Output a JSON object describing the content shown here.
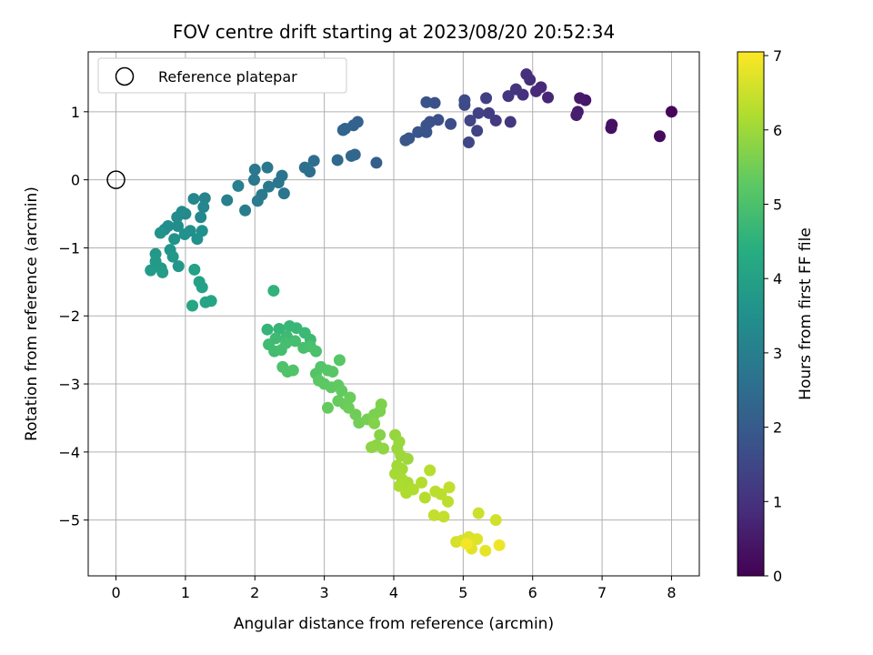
{
  "chart_data": {
    "type": "scatter",
    "title": "FOV centre drift starting at 2023/08/20 20:52:34",
    "xlabel": "Angular distance from reference (arcmin)",
    "ylabel": "Rotation from reference (arcmin)",
    "xlim": [
      -0.4,
      8.4
    ],
    "ylim": [
      -5.82,
      1.88
    ],
    "xticks": [
      0,
      1,
      2,
      3,
      4,
      5,
      6,
      7,
      8
    ],
    "yticks": [
      -5,
      -4,
      -3,
      -2,
      -1,
      0,
      1
    ],
    "grid": true,
    "colorbar": {
      "label": "Hours from first FF file",
      "range": [
        0,
        7.05
      ],
      "ticks": [
        0,
        1,
        2,
        3,
        4,
        5,
        6,
        7
      ],
      "colormap": "viridis"
    },
    "legend": {
      "position": "top-left",
      "entries": [
        {
          "label": "Reference platepar",
          "marker": "open-circle"
        }
      ]
    },
    "reference_point": {
      "x": 0,
      "y": 0
    },
    "series": [
      {
        "points": [
          {
            "x": 8.0,
            "y": 1.0,
            "t": 0.1
          },
          {
            "x": 7.83,
            "y": 0.64,
            "t": 0.2
          },
          {
            "x": 7.13,
            "y": 0.76,
            "t": 0.3
          },
          {
            "x": 7.14,
            "y": 0.81,
            "t": 0.35
          },
          {
            "x": 6.76,
            "y": 1.17,
            "t": 0.45
          },
          {
            "x": 6.68,
            "y": 1.2,
            "t": 0.5
          },
          {
            "x": 6.65,
            "y": 1.0,
            "t": 0.55
          },
          {
            "x": 6.63,
            "y": 0.95,
            "t": 0.6
          },
          {
            "x": 6.22,
            "y": 1.21,
            "t": 0.75
          },
          {
            "x": 6.12,
            "y": 1.36,
            "t": 0.8
          },
          {
            "x": 6.05,
            "y": 1.3,
            "t": 0.85
          },
          {
            "x": 5.96,
            "y": 1.47,
            "t": 0.9
          },
          {
            "x": 5.91,
            "y": 1.55,
            "t": 0.95
          },
          {
            "x": 5.86,
            "y": 1.25,
            "t": 1.0
          },
          {
            "x": 5.76,
            "y": 1.33,
            "t": 1.05
          },
          {
            "x": 5.65,
            "y": 1.23,
            "t": 1.1
          },
          {
            "x": 5.68,
            "y": 0.85,
            "t": 1.15
          },
          {
            "x": 5.47,
            "y": 0.87,
            "t": 1.2
          },
          {
            "x": 5.37,
            "y": 0.98,
            "t": 1.25
          },
          {
            "x": 5.33,
            "y": 1.2,
            "t": 1.3
          },
          {
            "x": 5.22,
            "y": 0.98,
            "t": 1.35
          },
          {
            "x": 5.2,
            "y": 0.72,
            "t": 1.4
          },
          {
            "x": 5.1,
            "y": 0.87,
            "t": 1.45
          },
          {
            "x": 5.08,
            "y": 0.55,
            "t": 1.5
          },
          {
            "x": 5.02,
            "y": 1.1,
            "t": 1.55
          },
          {
            "x": 5.02,
            "y": 1.17,
            "t": 1.6
          },
          {
            "x": 4.82,
            "y": 0.82,
            "t": 1.65
          },
          {
            "x": 4.64,
            "y": 0.88,
            "t": 1.7
          },
          {
            "x": 4.59,
            "y": 1.13,
            "t": 1.72
          },
          {
            "x": 4.52,
            "y": 0.85,
            "t": 1.75
          },
          {
            "x": 4.47,
            "y": 1.14,
            "t": 1.78
          },
          {
            "x": 4.47,
            "y": 0.7,
            "t": 1.8
          },
          {
            "x": 4.47,
            "y": 0.8,
            "t": 1.82
          },
          {
            "x": 4.35,
            "y": 0.7,
            "t": 1.85
          },
          {
            "x": 4.22,
            "y": 0.61,
            "t": 1.88
          },
          {
            "x": 4.17,
            "y": 0.58,
            "t": 1.9
          },
          {
            "x": 3.75,
            "y": 0.25,
            "t": 2.1
          },
          {
            "x": 3.48,
            "y": 0.85,
            "t": 2.2
          },
          {
            "x": 3.42,
            "y": 0.8,
            "t": 2.22
          },
          {
            "x": 3.3,
            "y": 0.75,
            "t": 2.25
          },
          {
            "x": 3.27,
            "y": 0.73,
            "t": 2.28
          },
          {
            "x": 3.44,
            "y": 0.37,
            "t": 2.32
          },
          {
            "x": 3.39,
            "y": 0.35,
            "t": 2.35
          },
          {
            "x": 3.19,
            "y": 0.29,
            "t": 2.4
          },
          {
            "x": 2.85,
            "y": 0.28,
            "t": 2.5
          },
          {
            "x": 2.79,
            "y": 0.12,
            "t": 2.55
          },
          {
            "x": 2.72,
            "y": 0.18,
            "t": 2.6
          },
          {
            "x": 2.39,
            "y": 0.06,
            "t": 2.7
          },
          {
            "x": 2.34,
            "y": -0.04,
            "t": 2.72
          },
          {
            "x": 2.42,
            "y": -0.2,
            "t": 2.75
          },
          {
            "x": 2.18,
            "y": 0.18,
            "t": 2.78
          },
          {
            "x": 2.0,
            "y": 0.15,
            "t": 2.8
          },
          {
            "x": 1.99,
            "y": 0.0,
            "t": 2.82
          },
          {
            "x": 2.2,
            "y": -0.1,
            "t": 2.85
          },
          {
            "x": 2.1,
            "y": -0.22,
            "t": 2.88
          },
          {
            "x": 2.04,
            "y": -0.31,
            "t": 2.9
          },
          {
            "x": 1.86,
            "y": -0.45,
            "t": 2.95
          },
          {
            "x": 1.76,
            "y": -0.09,
            "t": 3.0
          },
          {
            "x": 1.6,
            "y": -0.3,
            "t": 3.05
          },
          {
            "x": 1.28,
            "y": -0.27,
            "t": 3.15
          },
          {
            "x": 1.12,
            "y": -0.28,
            "t": 3.2
          },
          {
            "x": 1.26,
            "y": -0.4,
            "t": 3.22
          },
          {
            "x": 1.22,
            "y": -0.55,
            "t": 3.25
          },
          {
            "x": 1.0,
            "y": -0.5,
            "t": 3.3
          },
          {
            "x": 0.95,
            "y": -0.47,
            "t": 3.32
          },
          {
            "x": 0.88,
            "y": -0.55,
            "t": 3.35
          },
          {
            "x": 0.7,
            "y": -0.73,
            "t": 3.4
          },
          {
            "x": 0.75,
            "y": -0.68,
            "t": 3.42
          },
          {
            "x": 0.89,
            "y": -0.68,
            "t": 3.45
          },
          {
            "x": 1.07,
            "y": -0.75,
            "t": 3.48
          },
          {
            "x": 1.24,
            "y": -0.75,
            "t": 3.5
          },
          {
            "x": 1.17,
            "y": -0.87,
            "t": 3.52
          },
          {
            "x": 0.99,
            "y": -0.8,
            "t": 3.55
          },
          {
            "x": 0.84,
            "y": -0.87,
            "t": 3.58
          },
          {
            "x": 0.64,
            "y": -0.78,
            "t": 3.6
          },
          {
            "x": 0.78,
            "y": -1.03,
            "t": 3.65
          },
          {
            "x": 0.82,
            "y": -1.13,
            "t": 3.7
          },
          {
            "x": 0.9,
            "y": -1.27,
            "t": 3.72
          },
          {
            "x": 0.57,
            "y": -1.09,
            "t": 3.75
          },
          {
            "x": 0.57,
            "y": -1.2,
            "t": 3.78
          },
          {
            "x": 0.65,
            "y": -1.3,
            "t": 3.8
          },
          {
            "x": 0.5,
            "y": -1.33,
            "t": 3.82
          },
          {
            "x": 0.67,
            "y": -1.36,
            "t": 3.85
          },
          {
            "x": 1.13,
            "y": -1.32,
            "t": 4.0
          },
          {
            "x": 1.2,
            "y": -1.5,
            "t": 4.02
          },
          {
            "x": 1.24,
            "y": -1.58,
            "t": 4.05
          },
          {
            "x": 1.29,
            "y": -1.8,
            "t": 4.1
          },
          {
            "x": 1.37,
            "y": -1.78,
            "t": 4.12
          },
          {
            "x": 1.1,
            "y": -1.85,
            "t": 4.15
          },
          {
            "x": 2.27,
            "y": -1.63,
            "t": 4.55
          },
          {
            "x": 2.18,
            "y": -2.2,
            "t": 4.6
          },
          {
            "x": 2.35,
            "y": -2.19,
            "t": 4.63
          },
          {
            "x": 2.5,
            "y": -2.15,
            "t": 4.66
          },
          {
            "x": 2.6,
            "y": -2.18,
            "t": 4.7
          },
          {
            "x": 2.72,
            "y": -2.25,
            "t": 4.72
          },
          {
            "x": 2.8,
            "y": -2.35,
            "t": 4.75
          },
          {
            "x": 2.46,
            "y": -2.3,
            "t": 4.78
          },
          {
            "x": 2.3,
            "y": -2.33,
            "t": 4.8
          },
          {
            "x": 2.2,
            "y": -2.42,
            "t": 4.82
          },
          {
            "x": 2.28,
            "y": -2.52,
            "t": 4.85
          },
          {
            "x": 2.38,
            "y": -2.5,
            "t": 4.88
          },
          {
            "x": 2.45,
            "y": -2.4,
            "t": 4.9
          },
          {
            "x": 2.58,
            "y": -2.37,
            "t": 4.92
          },
          {
            "x": 2.7,
            "y": -2.47,
            "t": 4.95
          },
          {
            "x": 2.8,
            "y": -2.45,
            "t": 4.98
          },
          {
            "x": 2.88,
            "y": -2.52,
            "t": 5.0
          },
          {
            "x": 2.4,
            "y": -2.75,
            "t": 5.02
          },
          {
            "x": 2.47,
            "y": -2.82,
            "t": 5.05
          },
          {
            "x": 2.55,
            "y": -2.8,
            "t": 5.08
          },
          {
            "x": 2.88,
            "y": -2.85,
            "t": 5.1
          },
          {
            "x": 2.95,
            "y": -2.75,
            "t": 5.12
          },
          {
            "x": 3.05,
            "y": -2.8,
            "t": 5.15
          },
          {
            "x": 3.22,
            "y": -2.65,
            "t": 5.18
          },
          {
            "x": 3.12,
            "y": -2.82,
            "t": 5.2
          },
          {
            "x": 2.92,
            "y": -2.95,
            "t": 5.22
          },
          {
            "x": 3.0,
            "y": -3.0,
            "t": 5.25
          },
          {
            "x": 3.1,
            "y": -3.05,
            "t": 5.28
          },
          {
            "x": 3.2,
            "y": -3.02,
            "t": 5.3
          },
          {
            "x": 3.25,
            "y": -3.1,
            "t": 5.32
          },
          {
            "x": 3.05,
            "y": -3.35,
            "t": 5.35
          },
          {
            "x": 3.2,
            "y": -3.25,
            "t": 5.38
          },
          {
            "x": 3.3,
            "y": -3.3,
            "t": 5.4
          },
          {
            "x": 3.37,
            "y": -3.2,
            "t": 5.42
          },
          {
            "x": 3.35,
            "y": -3.35,
            "t": 5.45
          },
          {
            "x": 3.45,
            "y": -3.45,
            "t": 5.48
          },
          {
            "x": 3.5,
            "y": -3.57,
            "t": 5.5
          },
          {
            "x": 3.62,
            "y": -3.52,
            "t": 5.55
          },
          {
            "x": 3.72,
            "y": -3.45,
            "t": 5.6
          },
          {
            "x": 3.8,
            "y": -3.4,
            "t": 5.62
          },
          {
            "x": 3.82,
            "y": -3.3,
            "t": 5.65
          },
          {
            "x": 3.72,
            "y": -3.58,
            "t": 5.7
          },
          {
            "x": 3.8,
            "y": -3.75,
            "t": 5.75
          },
          {
            "x": 3.75,
            "y": -3.9,
            "t": 5.8
          },
          {
            "x": 3.68,
            "y": -3.93,
            "t": 5.82
          },
          {
            "x": 3.85,
            "y": -3.95,
            "t": 5.85
          },
          {
            "x": 4.02,
            "y": -3.75,
            "t": 5.9
          },
          {
            "x": 4.08,
            "y": -3.85,
            "t": 5.93
          },
          {
            "x": 4.05,
            "y": -3.95,
            "t": 5.95
          },
          {
            "x": 4.1,
            "y": -4.05,
            "t": 5.98
          },
          {
            "x": 4.2,
            "y": -4.1,
            "t": 6.0
          },
          {
            "x": 4.05,
            "y": -4.2,
            "t": 6.02
          },
          {
            "x": 4.12,
            "y": -4.25,
            "t": 6.05
          },
          {
            "x": 4.02,
            "y": -4.32,
            "t": 6.08
          },
          {
            "x": 4.12,
            "y": -4.4,
            "t": 6.1
          },
          {
            "x": 4.2,
            "y": -4.45,
            "t": 6.12
          },
          {
            "x": 4.08,
            "y": -4.5,
            "t": 6.15
          },
          {
            "x": 4.18,
            "y": -4.6,
            "t": 6.18
          },
          {
            "x": 4.28,
            "y": -4.55,
            "t": 6.2
          },
          {
            "x": 4.4,
            "y": -4.45,
            "t": 6.22
          },
          {
            "x": 4.45,
            "y": -4.67,
            "t": 6.25
          },
          {
            "x": 4.52,
            "y": -4.27,
            "t": 6.28
          },
          {
            "x": 4.6,
            "y": -4.58,
            "t": 6.3
          },
          {
            "x": 4.68,
            "y": -4.62,
            "t": 6.32
          },
          {
            "x": 4.78,
            "y": -4.73,
            "t": 6.35
          },
          {
            "x": 4.8,
            "y": -4.52,
            "t": 6.38
          },
          {
            "x": 4.58,
            "y": -4.93,
            "t": 6.4
          },
          {
            "x": 4.72,
            "y": -4.95,
            "t": 6.42
          },
          {
            "x": 5.22,
            "y": -4.9,
            "t": 6.5
          },
          {
            "x": 5.47,
            "y": -5.0,
            "t": 6.55
          },
          {
            "x": 4.9,
            "y": -5.32,
            "t": 6.6
          },
          {
            "x": 4.98,
            "y": -5.3,
            "t": 6.62
          },
          {
            "x": 5.08,
            "y": -5.25,
            "t": 6.65
          },
          {
            "x": 5.13,
            "y": -5.28,
            "t": 6.68
          },
          {
            "x": 5.2,
            "y": -5.28,
            "t": 6.7
          },
          {
            "x": 5.12,
            "y": -5.42,
            "t": 6.75
          },
          {
            "x": 5.32,
            "y": -5.45,
            "t": 6.8
          },
          {
            "x": 5.52,
            "y": -5.37,
            "t": 6.9
          },
          {
            "x": 5.05,
            "y": -5.35,
            "t": 6.95
          }
        ]
      }
    ]
  }
}
